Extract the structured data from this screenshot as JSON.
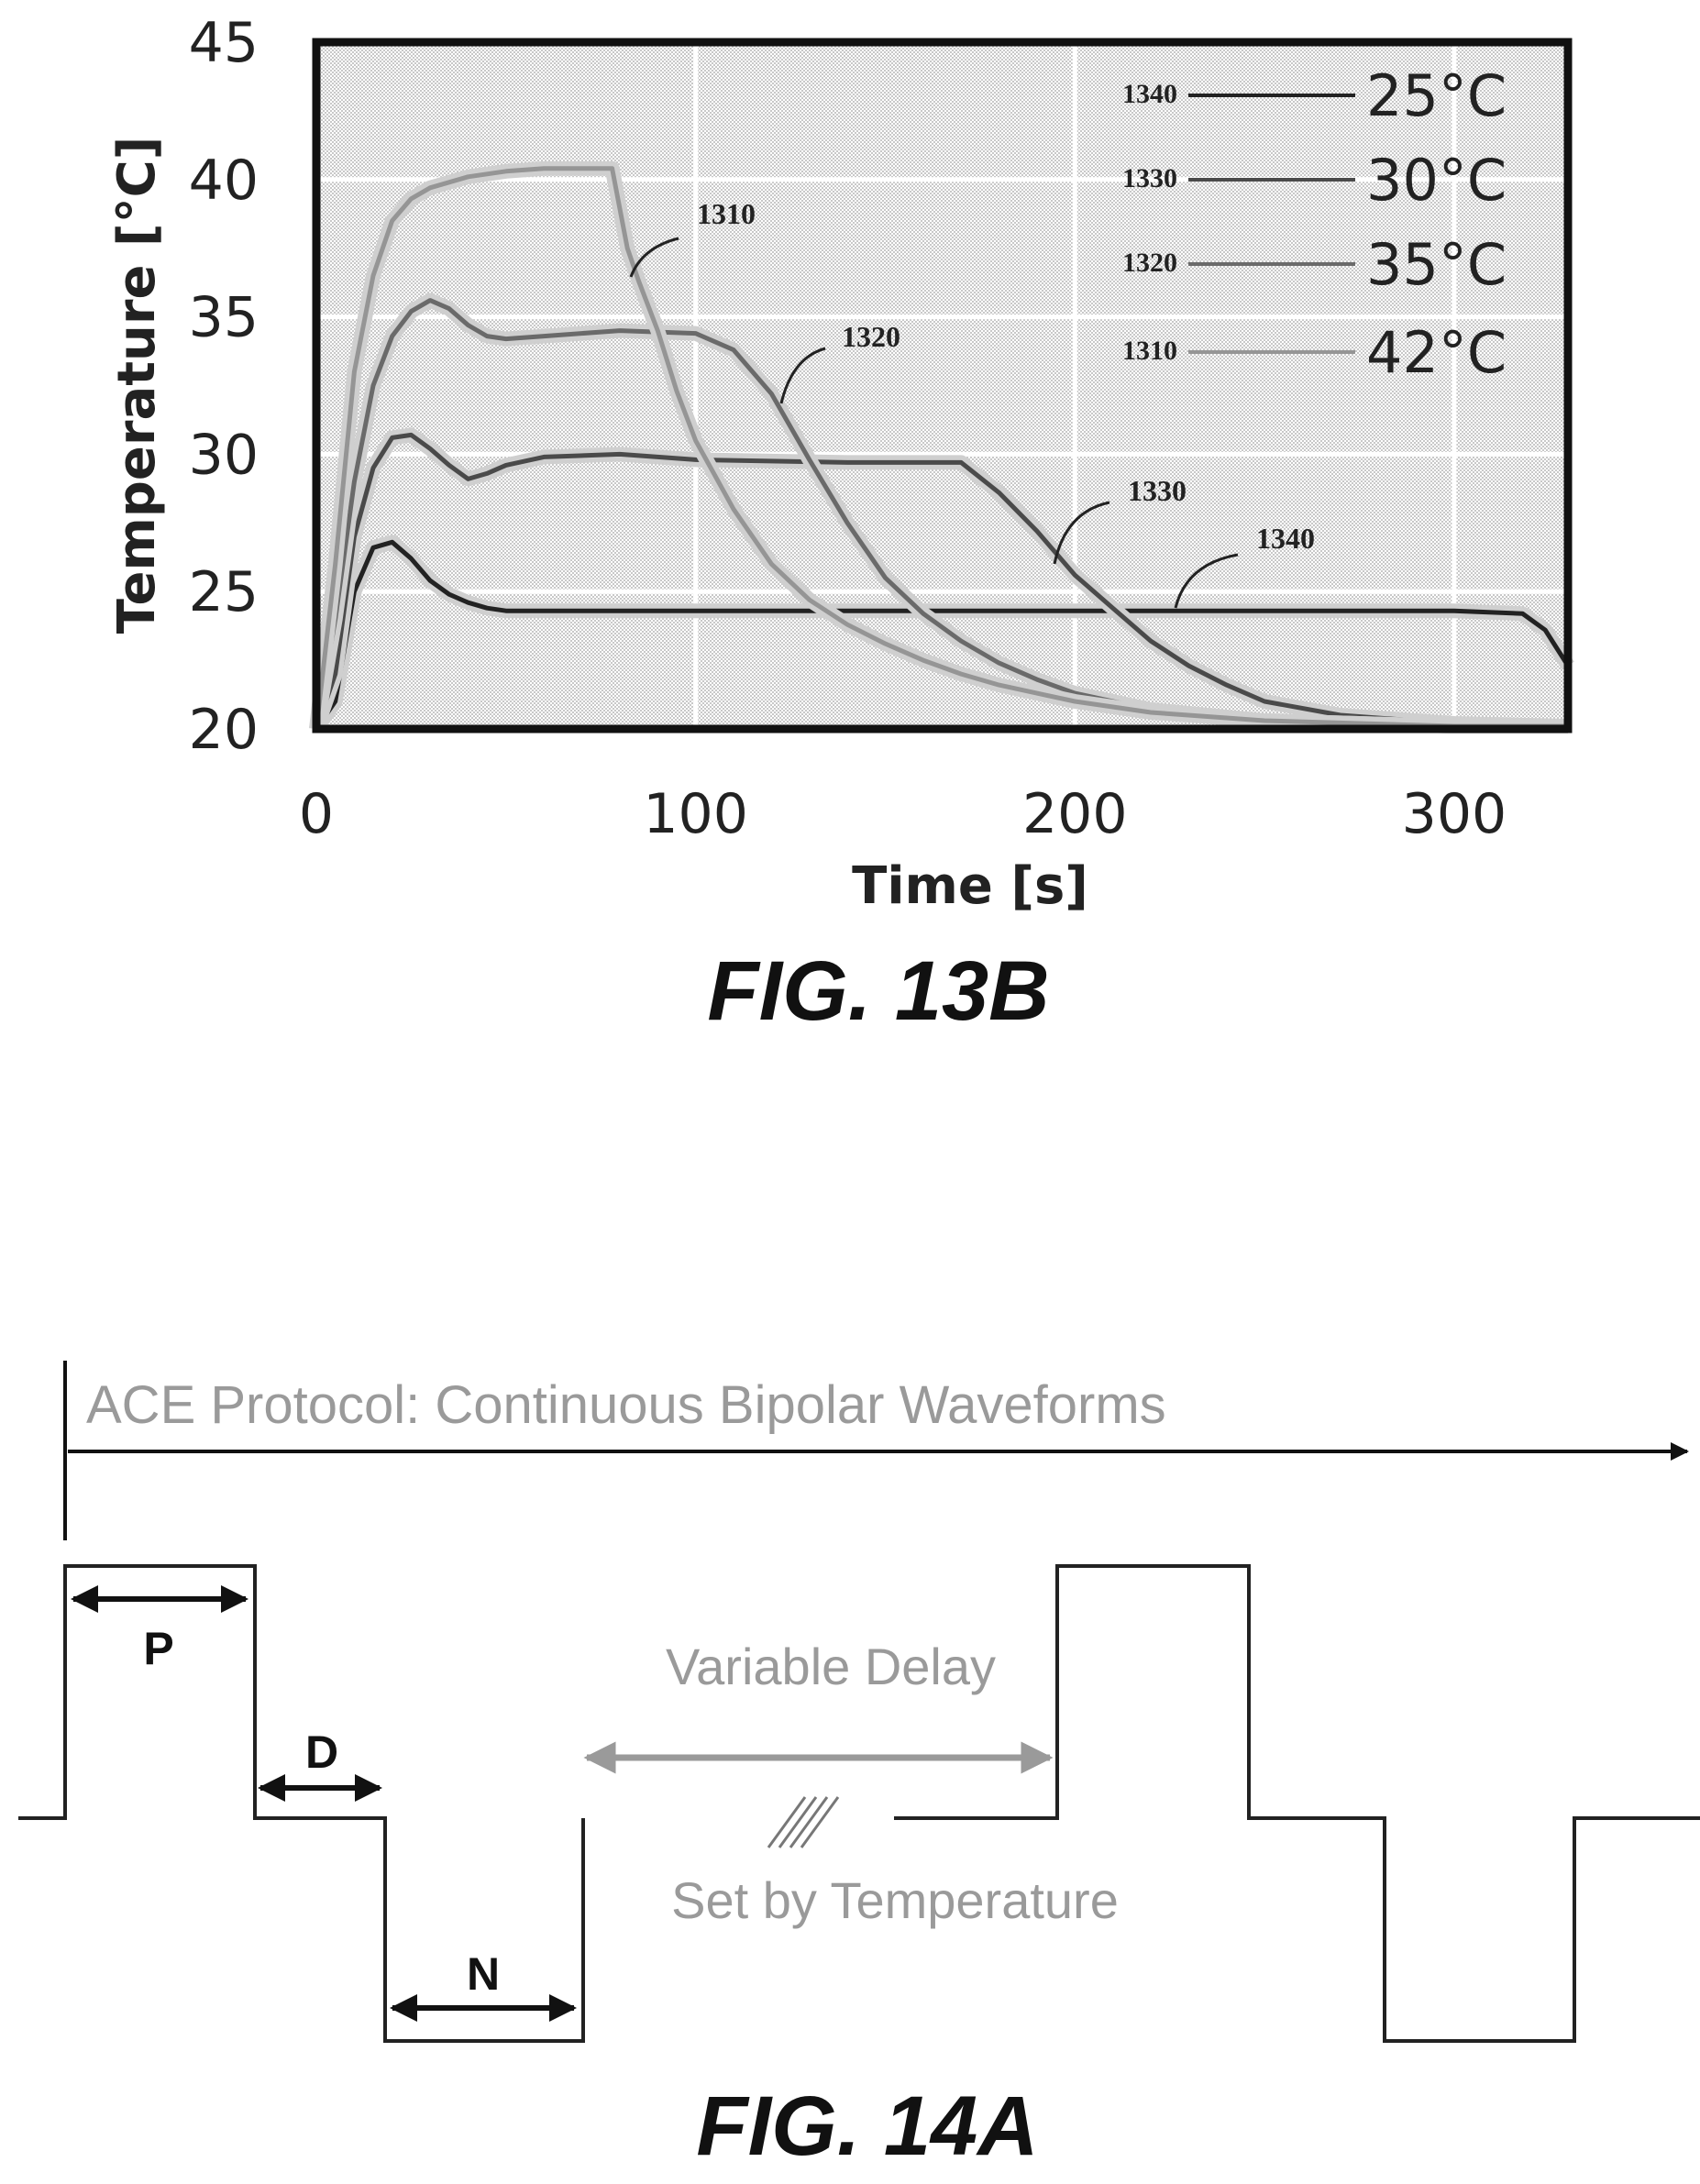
{
  "figure_13b": {
    "caption": "FIG. 13B",
    "chart_data": {
      "type": "line",
      "xlabel": "Time [s]",
      "ylabel": "Temperature [°C]",
      "xlim": [
        0,
        330
      ],
      "ylim": [
        20,
        45
      ],
      "xticks": [
        "0",
        "100",
        "200",
        "300"
      ],
      "yticks": [
        "20",
        "25",
        "30",
        "35",
        "40",
        "45"
      ],
      "grid": true,
      "legend_position": "top-right",
      "series": [
        {
          "name": "25°C",
          "ref": "1340",
          "color": "#222222",
          "x": [
            0,
            5,
            10,
            15,
            20,
            25,
            30,
            35,
            40,
            45,
            50,
            60,
            80,
            100,
            150,
            200,
            250,
            300,
            318,
            324,
            330
          ],
          "y": [
            20,
            21,
            25,
            26.6,
            26.8,
            26.2,
            25.4,
            24.9,
            24.6,
            24.4,
            24.3,
            24.3,
            24.3,
            24.3,
            24.3,
            24.3,
            24.3,
            24.3,
            24.2,
            23.6,
            22.3
          ]
        },
        {
          "name": "30°C",
          "ref": "1330",
          "color": "#4a4a4a",
          "x": [
            0,
            5,
            10,
            15,
            20,
            25,
            30,
            35,
            40,
            45,
            50,
            60,
            80,
            100,
            140,
            170,
            180,
            190,
            200,
            210,
            220,
            230,
            240,
            250,
            270,
            300,
            330
          ],
          "y": [
            20,
            22,
            27,
            29.5,
            30.6,
            30.7,
            30.2,
            29.6,
            29.1,
            29.3,
            29.6,
            29.9,
            30,
            29.8,
            29.7,
            29.7,
            28.6,
            27.2,
            25.6,
            24.4,
            23.2,
            22.3,
            21.6,
            21,
            20.5,
            20.2,
            20.1
          ]
        },
        {
          "name": "35°C",
          "ref": "1320",
          "color": "#6a6a6a",
          "x": [
            0,
            5,
            10,
            15,
            20,
            25,
            30,
            35,
            40,
            45,
            50,
            60,
            80,
            100,
            110,
            120,
            130,
            140,
            150,
            160,
            170,
            180,
            190,
            200,
            210,
            220,
            250,
            300,
            330
          ],
          "y": [
            20,
            24,
            29,
            32.5,
            34.3,
            35.2,
            35.6,
            35.3,
            34.7,
            34.3,
            34.2,
            34.3,
            34.5,
            34.4,
            33.8,
            32.2,
            29.8,
            27.5,
            25.5,
            24.2,
            23.2,
            22.4,
            21.8,
            21.3,
            21,
            20.7,
            20.3,
            20.1,
            20.1
          ]
        },
        {
          "name": "42°C",
          "ref": "1310",
          "color": "#959595",
          "x": [
            0,
            5,
            10,
            15,
            20,
            25,
            30,
            40,
            50,
            60,
            70,
            78,
            82,
            85,
            90,
            95,
            100,
            110,
            120,
            130,
            140,
            150,
            160,
            170,
            180,
            190,
            200,
            220,
            250,
            300,
            330
          ],
          "y": [
            20,
            26,
            33,
            36.5,
            38.5,
            39.3,
            39.7,
            40.1,
            40.3,
            40.4,
            40.4,
            40.4,
            37.5,
            36.3,
            34.5,
            32.3,
            30.5,
            28,
            26,
            24.7,
            23.8,
            23.1,
            22.5,
            22,
            21.6,
            21.3,
            21,
            20.6,
            20.3,
            20.1,
            20.1
          ]
        }
      ],
      "callouts": [
        {
          "ref": "1310",
          "label": "1310"
        },
        {
          "ref": "1320",
          "label": "1320"
        },
        {
          "ref": "1330",
          "label": "1330"
        },
        {
          "ref": "1340",
          "label": "1340"
        }
      ]
    }
  },
  "figure_14a": {
    "caption": "FIG. 14A",
    "title": "ACE Protocol: Continuous Bipolar Waveforms",
    "labels": {
      "p": "P",
      "d": "D",
      "n": "N",
      "variable_delay": "Variable Delay",
      "set_by": "Set by Temperature"
    }
  }
}
